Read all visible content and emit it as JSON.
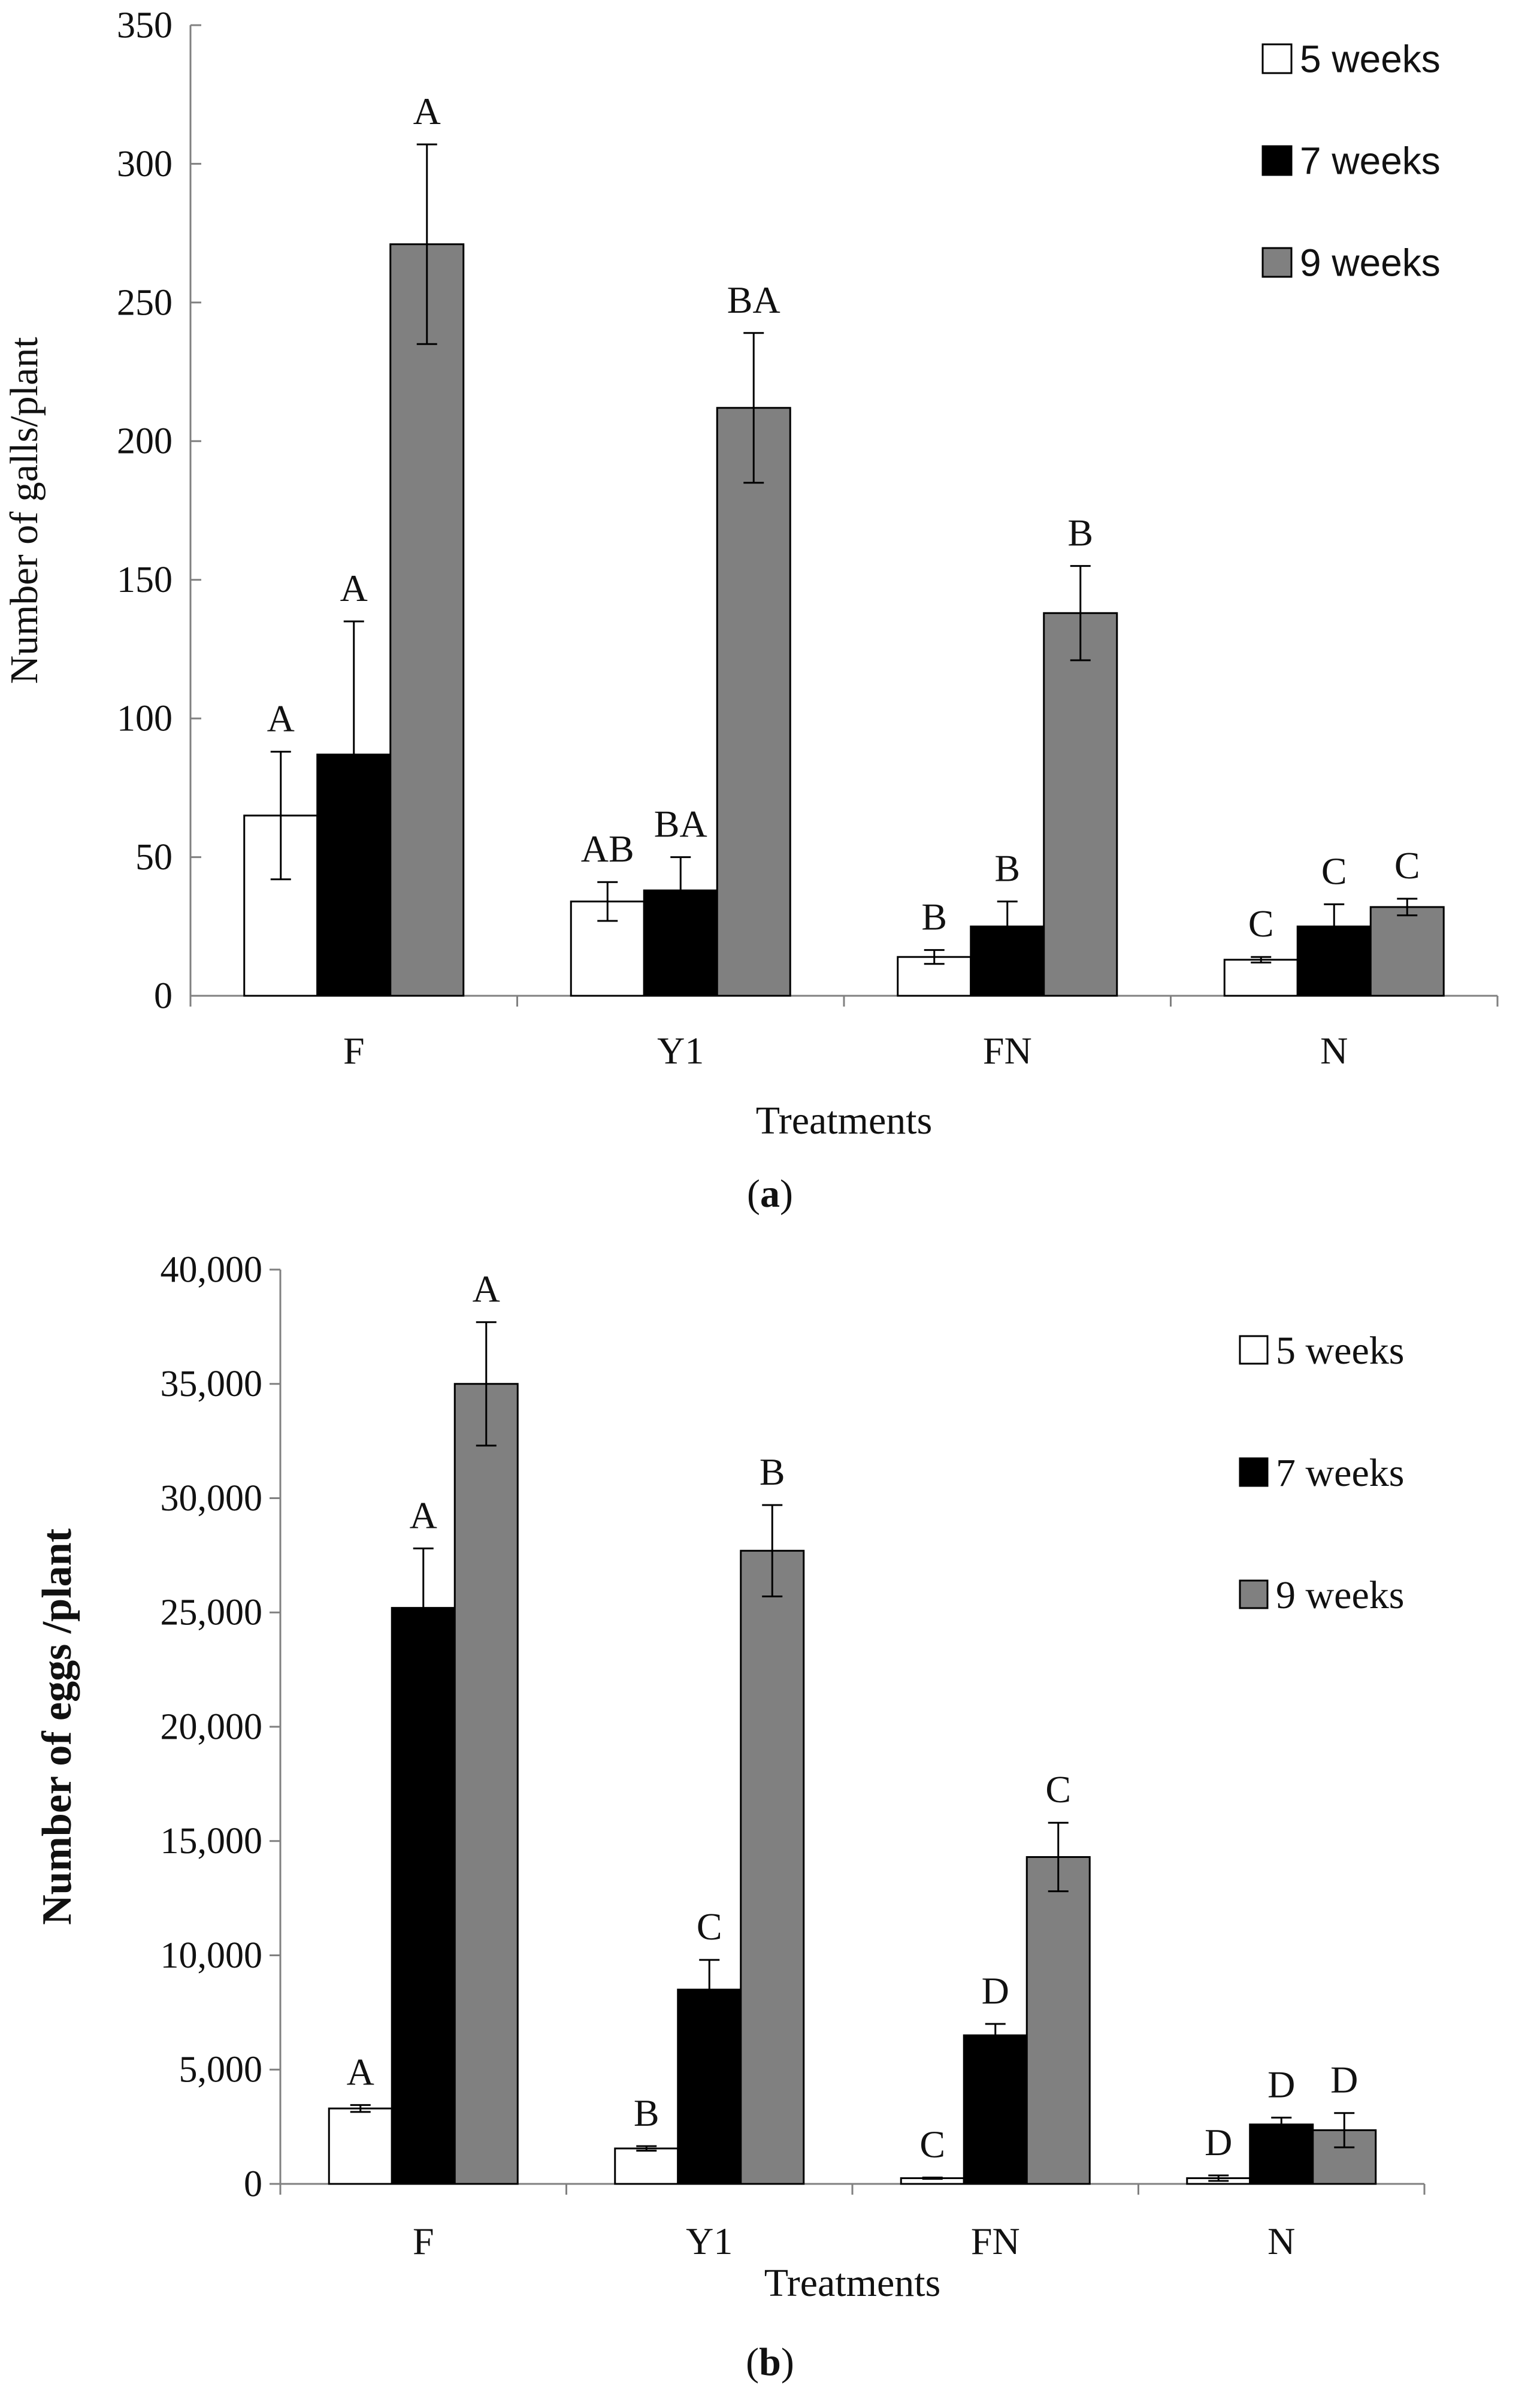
{
  "colors": {
    "w5": "#ffffff",
    "w7": "#000000",
    "w9": "#808080",
    "axis": "#808080",
    "stroke": "#000000"
  },
  "chart_data": [
    {
      "id": "a",
      "type": "bar",
      "caption": "a",
      "xlabel": "Treatments",
      "ylabel": "Number of galls/plant",
      "ylim": [
        0,
        350
      ],
      "ytick_step": 50,
      "yticks": [
        "0",
        "50",
        "100",
        "150",
        "200",
        "250",
        "300",
        "350"
      ],
      "categories": [
        "F",
        "Y1",
        "FN",
        "N"
      ],
      "legend_position": "top-right",
      "series": [
        {
          "name": "5 weeks",
          "color": "#ffffff",
          "values": [
            65,
            34,
            14,
            13
          ],
          "errors": [
            23,
            7,
            2.5,
            1
          ],
          "letters": [
            "A",
            "AB",
            "B",
            "C"
          ]
        },
        {
          "name": "7 weeks",
          "color": "#000000",
          "values": [
            87,
            38,
            25,
            25
          ],
          "errors": [
            48,
            12,
            9,
            8
          ],
          "letters": [
            "A",
            "BA",
            "B",
            "C"
          ]
        },
        {
          "name": "9 weeks",
          "color": "#808080",
          "values": [
            271,
            212,
            138,
            32
          ],
          "errors": [
            36,
            27,
            17,
            3
          ],
          "letters": [
            "A",
            "BA",
            "B",
            "C"
          ]
        }
      ]
    },
    {
      "id": "b",
      "type": "bar",
      "caption": "b",
      "xlabel": "Treatments",
      "ylabel": "Number of eggs /plant",
      "ylim": [
        0,
        40000
      ],
      "ytick_step": 5000,
      "yticks": [
        "0",
        "5,000",
        "10,000",
        "15,000",
        "20,000",
        "25,000",
        "30,000",
        "35,000",
        "40,000"
      ],
      "categories": [
        "F",
        "Y1",
        "FN",
        "N"
      ],
      "legend_position": "top-right",
      "series": [
        {
          "name": "5 weeks",
          "color": "#ffffff",
          "values": [
            3300,
            1550,
            250,
            250
          ],
          "errors": [
            150,
            100,
            30,
            120
          ],
          "letters": [
            "A",
            "B",
            "C",
            "D"
          ]
        },
        {
          "name": "7 weeks",
          "color": "#000000",
          "values": [
            25200,
            8500,
            6500,
            2600
          ],
          "errors": [
            2600,
            1300,
            500,
            300
          ],
          "letters": [
            "A",
            "C",
            "D",
            "D"
          ]
        },
        {
          "name": "9 weeks",
          "color": "#808080",
          "values": [
            35000,
            27700,
            14300,
            2350
          ],
          "errors": [
            2700,
            2000,
            1500,
            750
          ],
          "letters": [
            "A",
            "B",
            "C",
            "D"
          ]
        }
      ]
    }
  ]
}
